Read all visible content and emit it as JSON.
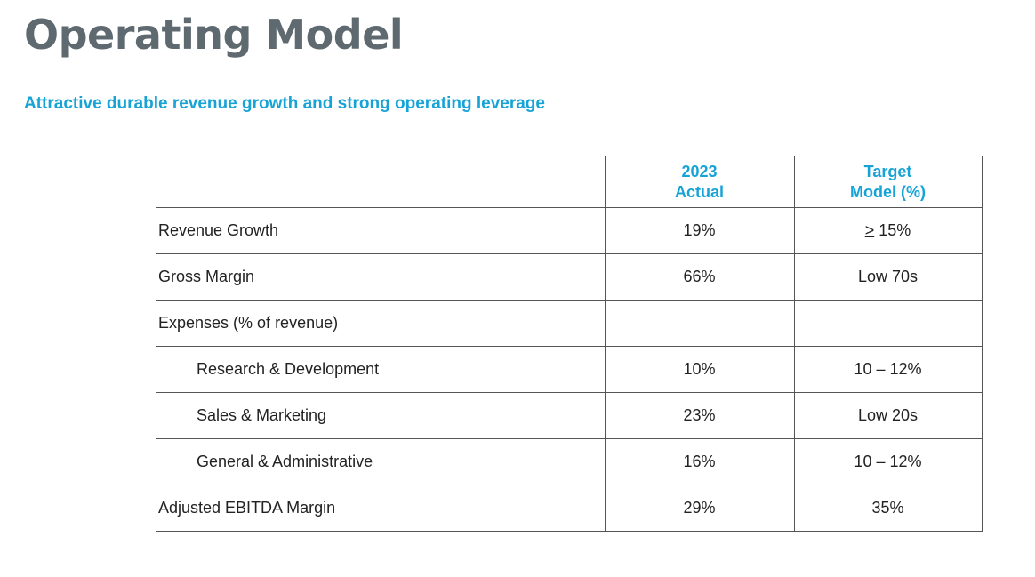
{
  "title": "Operating Model",
  "subtitle": "Attractive durable revenue growth and strong operating leverage",
  "table": {
    "headers": {
      "actual_line1": "2023",
      "actual_line2": "Actual",
      "target_line1": "Target",
      "target_line2": "Model (%)"
    },
    "rows": [
      {
        "label": "Revenue Growth",
        "actual": "19%",
        "target_symbol": ">",
        "target": " 15%"
      },
      {
        "label": "Gross Margin",
        "actual": "66%",
        "target": "Low 70s"
      },
      {
        "label": "Expenses (% of revenue)",
        "actual": "",
        "target": ""
      },
      {
        "label": "Research & Development",
        "actual": "10%",
        "target": "10 – 12%"
      },
      {
        "label": "Sales & Marketing",
        "actual": "23%",
        "target": "Low 20s"
      },
      {
        "label": "General & Administrative",
        "actual": "16%",
        "target": "10 – 12%"
      },
      {
        "label": "Adjusted EBITDA Margin",
        "actual": "29%",
        "target": "35%"
      }
    ]
  }
}
